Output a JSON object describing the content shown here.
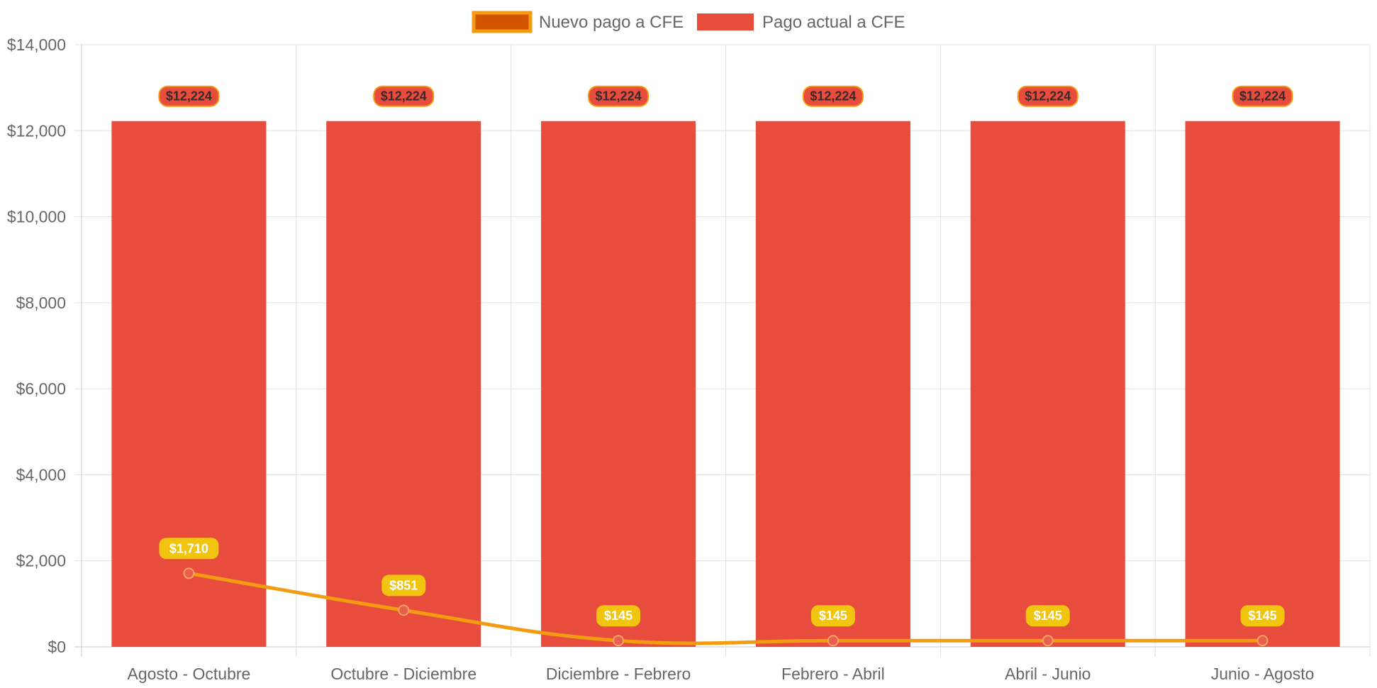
{
  "chart_data": {
    "type": "bar",
    "title": "",
    "xlabel": "",
    "ylabel": "",
    "ylim": [
      0,
      14000
    ],
    "y_ticks": [
      0,
      2000,
      4000,
      6000,
      8000,
      10000,
      12000,
      14000
    ],
    "y_tick_labels": [
      "$0",
      "$2,000",
      "$4,000",
      "$6,000",
      "$8,000",
      "$10,000",
      "$12,000",
      "$14,000"
    ],
    "grid": true,
    "legend_position": "top-center",
    "categories": [
      "Agosto - Octubre",
      "Octubre - Diciembre",
      "Diciembre - Febrero",
      "Febrero - Abril",
      "Abril - Junio",
      "Junio - Agosto"
    ],
    "series": [
      {
        "name": "Nuevo pago a CFE",
        "type": "line",
        "color": "#f39c12",
        "point_color": "#e8604c",
        "legend_fill": "#d35400",
        "values": [
          1710,
          851,
          145,
          145,
          145,
          145
        ],
        "labels": [
          "$1,710",
          "$851",
          "$145",
          "$145",
          "$145",
          "$145"
        ],
        "label_bg": "#f1c40f"
      },
      {
        "name": "Pago actual a CFE",
        "type": "bar",
        "color": "#e74c3c",
        "values": [
          12224,
          12224,
          12224,
          12224,
          12224,
          12224
        ],
        "labels": [
          "$12,224",
          "$12,224",
          "$12,224",
          "$12,224",
          "$12,224",
          "$12,224"
        ],
        "label_border": "#f39c12"
      }
    ]
  }
}
